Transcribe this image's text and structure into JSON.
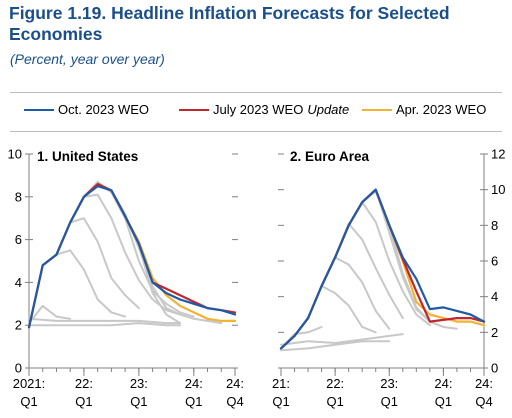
{
  "figure": {
    "title": "Figure 1.19.  Headline Inflation Forecasts for Selected Economies",
    "subtitle": "(Percent, year over year)"
  },
  "legend": [
    {
      "label": "Oct. 2023 WEO",
      "sublabel": "",
      "color": "#1f5aa6"
    },
    {
      "label": "July 2023 WEO",
      "sublabel": "Update",
      "color": "#c0272d"
    },
    {
      "label": "Apr. 2023 WEO",
      "sublabel": "",
      "color": "#f2b233"
    }
  ],
  "colors": {
    "older_vintages": "#c8c8c8",
    "axis": "#808080"
  },
  "chart_data": [
    {
      "type": "line",
      "title": "1. United States",
      "ylim": [
        0,
        10
      ],
      "yticks": [
        0,
        2,
        4,
        6,
        8,
        10
      ],
      "yaxis_side": "left",
      "xlim": [
        0,
        15
      ],
      "xticks": [
        {
          "x": 0,
          "line1": "2021:",
          "line2": "Q1"
        },
        {
          "x": 4,
          "line1": "22:",
          "line2": "Q1"
        },
        {
          "x": 8,
          "line1": "23:",
          "line2": "Q1"
        },
        {
          "x": 12,
          "line1": "24:",
          "line2": "Q1"
        },
        {
          "x": 15,
          "line1": "24:",
          "line2": "Q4"
        }
      ],
      "grey_series": [
        {
          "x": [
            0,
            1,
            2,
            3
          ],
          "values": [
            2.1,
            2.9,
            2.4,
            2.3
          ]
        },
        {
          "x": [
            1,
            2,
            3,
            4,
            5,
            6,
            7
          ],
          "values": [
            4.8,
            5.3,
            5.5,
            4.6,
            3.2,
            2.6,
            2.4
          ]
        },
        {
          "x": [
            2,
            3,
            4,
            5,
            6,
            7,
            8
          ],
          "values": [
            5.3,
            6.8,
            7.0,
            5.9,
            4.2,
            3.4,
            2.8
          ]
        },
        {
          "x": [
            3,
            4,
            5,
            6,
            7,
            8,
            9,
            10,
            11
          ],
          "values": [
            6.8,
            8.0,
            8.1,
            7.0,
            5.4,
            4.1,
            3.2,
            2.7,
            2.5
          ]
        },
        {
          "x": [
            4,
            5,
            6,
            7,
            8,
            9,
            10,
            11,
            12
          ],
          "values": [
            8.0,
            8.7,
            8.2,
            7.0,
            5.0,
            3.6,
            3.0,
            2.6,
            2.4
          ]
        },
        {
          "x": [
            5,
            6,
            7,
            8,
            9,
            10,
            11,
            12,
            13,
            14
          ],
          "values": [
            8.6,
            8.3,
            7.2,
            5.6,
            3.8,
            2.8,
            2.5,
            2.3,
            2.2,
            2.1
          ]
        },
        {
          "x": [
            0,
            2,
            4,
            6,
            8,
            10,
            11
          ],
          "values": [
            2.3,
            2.2,
            2.2,
            2.2,
            2.2,
            2.1,
            2.1
          ]
        },
        {
          "x": [
            0,
            2,
            4,
            6,
            8,
            10,
            11
          ],
          "values": [
            2.0,
            2.0,
            2.0,
            2.0,
            2.1,
            2.0,
            2.0
          ]
        },
        {
          "x": [
            6,
            7,
            8,
            9,
            10,
            11
          ],
          "values": [
            8.3,
            7.1,
            5.7,
            3.5,
            2.5,
            2.1
          ]
        }
      ],
      "series": [
        {
          "key": "apr",
          "x": [
            0,
            1,
            2,
            3,
            4,
            5,
            6,
            7,
            8,
            9,
            10,
            11,
            12,
            13,
            14,
            15
          ],
          "values": [
            1.9,
            4.8,
            5.3,
            6.8,
            8.0,
            8.6,
            8.3,
            7.1,
            5.9,
            4.2,
            3.4,
            2.9,
            2.6,
            2.3,
            2.2,
            2.2
          ]
        },
        {
          "key": "july",
          "x": [
            0,
            1,
            2,
            3,
            4,
            5,
            6,
            7,
            8,
            9,
            10,
            11,
            12,
            13,
            14,
            15
          ],
          "values": [
            1.9,
            4.8,
            5.3,
            6.8,
            8.0,
            8.6,
            8.3,
            7.1,
            5.8,
            4.0,
            3.7,
            3.4,
            3.1,
            2.8,
            2.7,
            2.6
          ]
        },
        {
          "key": "oct",
          "x": [
            0,
            1,
            2,
            3,
            4,
            5,
            6,
            7,
            8,
            9,
            10,
            11,
            12,
            13,
            14,
            15
          ],
          "values": [
            1.9,
            4.8,
            5.3,
            6.8,
            8.0,
            8.5,
            8.3,
            7.1,
            5.8,
            4.0,
            3.5,
            3.2,
            3.0,
            2.8,
            2.7,
            2.5
          ]
        }
      ]
    },
    {
      "type": "line",
      "title": "2. Euro Area",
      "ylim": [
        0,
        12
      ],
      "yticks": [
        0,
        2,
        4,
        6,
        8,
        10,
        12
      ],
      "yaxis_side": "right",
      "xlim": [
        0,
        15
      ],
      "xticks": [
        {
          "x": 0,
          "line1": "21:",
          "line2": "Q1"
        },
        {
          "x": 4,
          "line1": "22:",
          "line2": "Q1"
        },
        {
          "x": 8,
          "line1": "23:",
          "line2": "Q1"
        },
        {
          "x": 12,
          "line1": "24:",
          "line2": "Q1"
        },
        {
          "x": 15,
          "line1": "24:",
          "line2": "Q4"
        }
      ],
      "grey_series": [
        {
          "x": [
            0,
            1,
            2,
            3
          ],
          "values": [
            1.1,
            1.9,
            2.0,
            2.3
          ]
        },
        {
          "x": [
            1,
            2,
            3,
            4,
            5,
            6,
            7
          ],
          "values": [
            1.8,
            2.8,
            4.6,
            4.2,
            3.5,
            2.3,
            2.0
          ]
        },
        {
          "x": [
            2,
            3,
            4,
            5,
            6,
            7,
            8
          ],
          "values": [
            2.8,
            4.6,
            6.2,
            5.8,
            4.8,
            3.2,
            2.2
          ]
        },
        {
          "x": [
            3,
            4,
            5,
            6,
            7,
            8,
            9
          ],
          "values": [
            4.6,
            6.2,
            8.1,
            7.2,
            5.6,
            4.1,
            2.8
          ]
        },
        {
          "x": [
            4,
            5,
            6,
            7,
            8,
            9,
            10,
            11
          ],
          "values": [
            6.2,
            8.0,
            9.3,
            8.2,
            6.0,
            4.3,
            3.0,
            2.4
          ]
        },
        {
          "x": [
            5,
            6,
            7,
            8,
            9,
            10,
            11,
            12
          ],
          "values": [
            8.0,
            9.3,
            9.9,
            8.0,
            5.3,
            3.4,
            2.6,
            2.3
          ]
        },
        {
          "x": [
            6,
            7,
            8,
            9,
            10,
            11,
            12,
            13
          ],
          "values": [
            9.3,
            10.0,
            7.6,
            5.1,
            3.3,
            2.6,
            2.3,
            2.2
          ]
        },
        {
          "x": [
            0,
            2,
            4,
            6,
            8,
            9
          ],
          "values": [
            1.3,
            1.5,
            1.4,
            1.6,
            1.8,
            1.9
          ]
        },
        {
          "x": [
            0,
            2,
            4,
            6,
            8
          ],
          "values": [
            1.0,
            1.1,
            1.3,
            1.5,
            1.5
          ]
        }
      ],
      "series": [
        {
          "key": "apr",
          "x": [
            0,
            1,
            2,
            3,
            4,
            5,
            6,
            7,
            8,
            9,
            10,
            11,
            12,
            13,
            14,
            15
          ],
          "values": [
            1.1,
            1.8,
            2.8,
            4.6,
            6.2,
            8.0,
            9.3,
            10.0,
            8.0,
            6.0,
            3.7,
            3.0,
            2.8,
            2.6,
            2.6,
            2.4
          ]
        },
        {
          "key": "july",
          "x": [
            0,
            1,
            2,
            3,
            4,
            5,
            6,
            7,
            8,
            9,
            10,
            11,
            12,
            13,
            14,
            15
          ],
          "values": [
            1.1,
            1.8,
            2.8,
            4.6,
            6.2,
            8.0,
            9.3,
            10.0,
            8.0,
            6.1,
            4.3,
            2.6,
            2.7,
            2.8,
            2.8,
            2.6
          ]
        },
        {
          "key": "oct",
          "x": [
            0,
            1,
            2,
            3,
            4,
            5,
            6,
            7,
            8,
            9,
            10,
            11,
            12,
            13,
            14,
            15
          ],
          "values": [
            1.1,
            1.8,
            2.8,
            4.6,
            6.2,
            8.0,
            9.3,
            10.0,
            8.0,
            6.2,
            5.0,
            3.3,
            3.4,
            3.2,
            3.0,
            2.6
          ]
        }
      ]
    }
  ]
}
